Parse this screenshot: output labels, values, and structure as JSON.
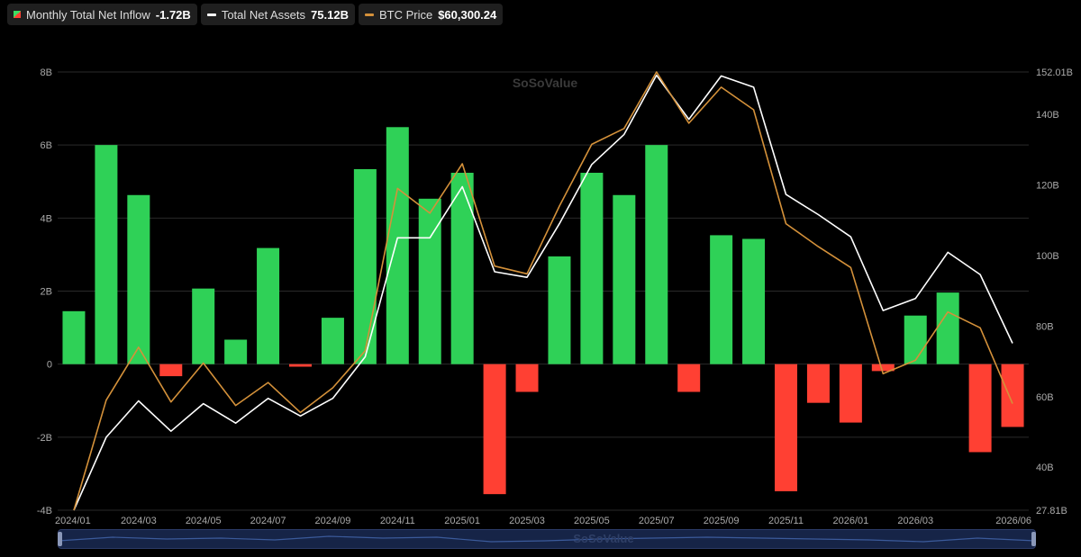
{
  "legend": {
    "inflow": {
      "label": "Monthly Total Net Inflow",
      "value": "-1.72B",
      "color": "#3ddc62"
    },
    "assets": {
      "label": "Total Net Assets",
      "value": "75.12B",
      "color": "#ffffff"
    },
    "btc": {
      "label": "BTC Price",
      "value": "$60,300.24",
      "color": "#d4913a"
    }
  },
  "watermark": "SoSoValue",
  "chart_data": {
    "type": "bar+line",
    "colors": {
      "positive": "#2fd157",
      "negative": "#ff4033",
      "assets": "#ffffff",
      "btc": "#d4913a"
    },
    "categories": [
      "2024/01",
      "2024/02",
      "2024/03",
      "2024/04",
      "2024/05",
      "2024/06",
      "2024/07",
      "2024/08",
      "2024/09",
      "2024/10",
      "2024/11",
      "2024/12",
      "2025/01",
      "2025/02",
      "2025/03",
      "2025/04",
      "2025/05",
      "2025/06",
      "2025/07",
      "2025/08",
      "2025/09",
      "2025/10",
      "2025/11",
      "2025/12",
      "2026/01",
      "2026/02",
      "2026/03",
      "2026/04",
      "2026/05",
      "2026/06"
    ],
    "x_tick_labels": [
      "2024/01",
      "2024/03",
      "2024/05",
      "2024/07",
      "2024/09",
      "2024/11",
      "2025/01",
      "2025/03",
      "2025/05",
      "2025/07",
      "2025/09",
      "2025/11",
      "2026/01",
      "2026/03",
      "2026/06"
    ],
    "left_axis": {
      "ticks": [
        "8B",
        "6B",
        "4B",
        "2B",
        "0",
        "-2B",
        "-4B"
      ],
      "ylim": [
        -4,
        8
      ]
    },
    "right_axis": {
      "ticks": [
        "152.01B",
        "140B",
        "120B",
        "100B",
        "80B",
        "60B",
        "40B",
        "27.81B"
      ],
      "ylim": [
        27.81,
        152.01
      ]
    },
    "series": [
      {
        "name": "Monthly Total Net Inflow",
        "type": "bar",
        "axis": "left",
        "values": [
          1.45,
          6.0,
          4.63,
          -0.33,
          2.07,
          0.67,
          3.18,
          -0.07,
          1.27,
          5.34,
          6.49,
          4.53,
          5.24,
          -3.56,
          -0.76,
          2.95,
          5.24,
          4.63,
          6.0,
          -0.76,
          3.53,
          3.43,
          -3.48,
          -1.06,
          -1.6,
          -0.19,
          1.33,
          1.96,
          -2.41,
          -1.72
        ]
      },
      {
        "name": "Total Net Assets",
        "type": "line",
        "axis": "right",
        "values": [
          27.81,
          48.5,
          58.8,
          50.2,
          58.0,
          52.5,
          59.5,
          54.5,
          59.5,
          71.3,
          105.0,
          105.0,
          119.5,
          95.4,
          93.8,
          109.0,
          125.8,
          134.3,
          151.1,
          138.6,
          150.9,
          147.7,
          117.3,
          111.6,
          105.3,
          84.4,
          87.8,
          100.9,
          94.6,
          75.12
        ]
      },
      {
        "name": "BTC Price",
        "type": "line",
        "axis": "right",
        "values": [
          27.81,
          59.0,
          74.0,
          58.5,
          69.5,
          57.5,
          64.0,
          55.5,
          62.5,
          73.0,
          119.0,
          112.0,
          126.0,
          97.0,
          94.8,
          114.0,
          131.5,
          136.0,
          152.01,
          137.5,
          147.7,
          141.3,
          109.0,
          102.5,
          96.6,
          66.5,
          70.3,
          84.0,
          79.5,
          58.0
        ]
      }
    ]
  }
}
